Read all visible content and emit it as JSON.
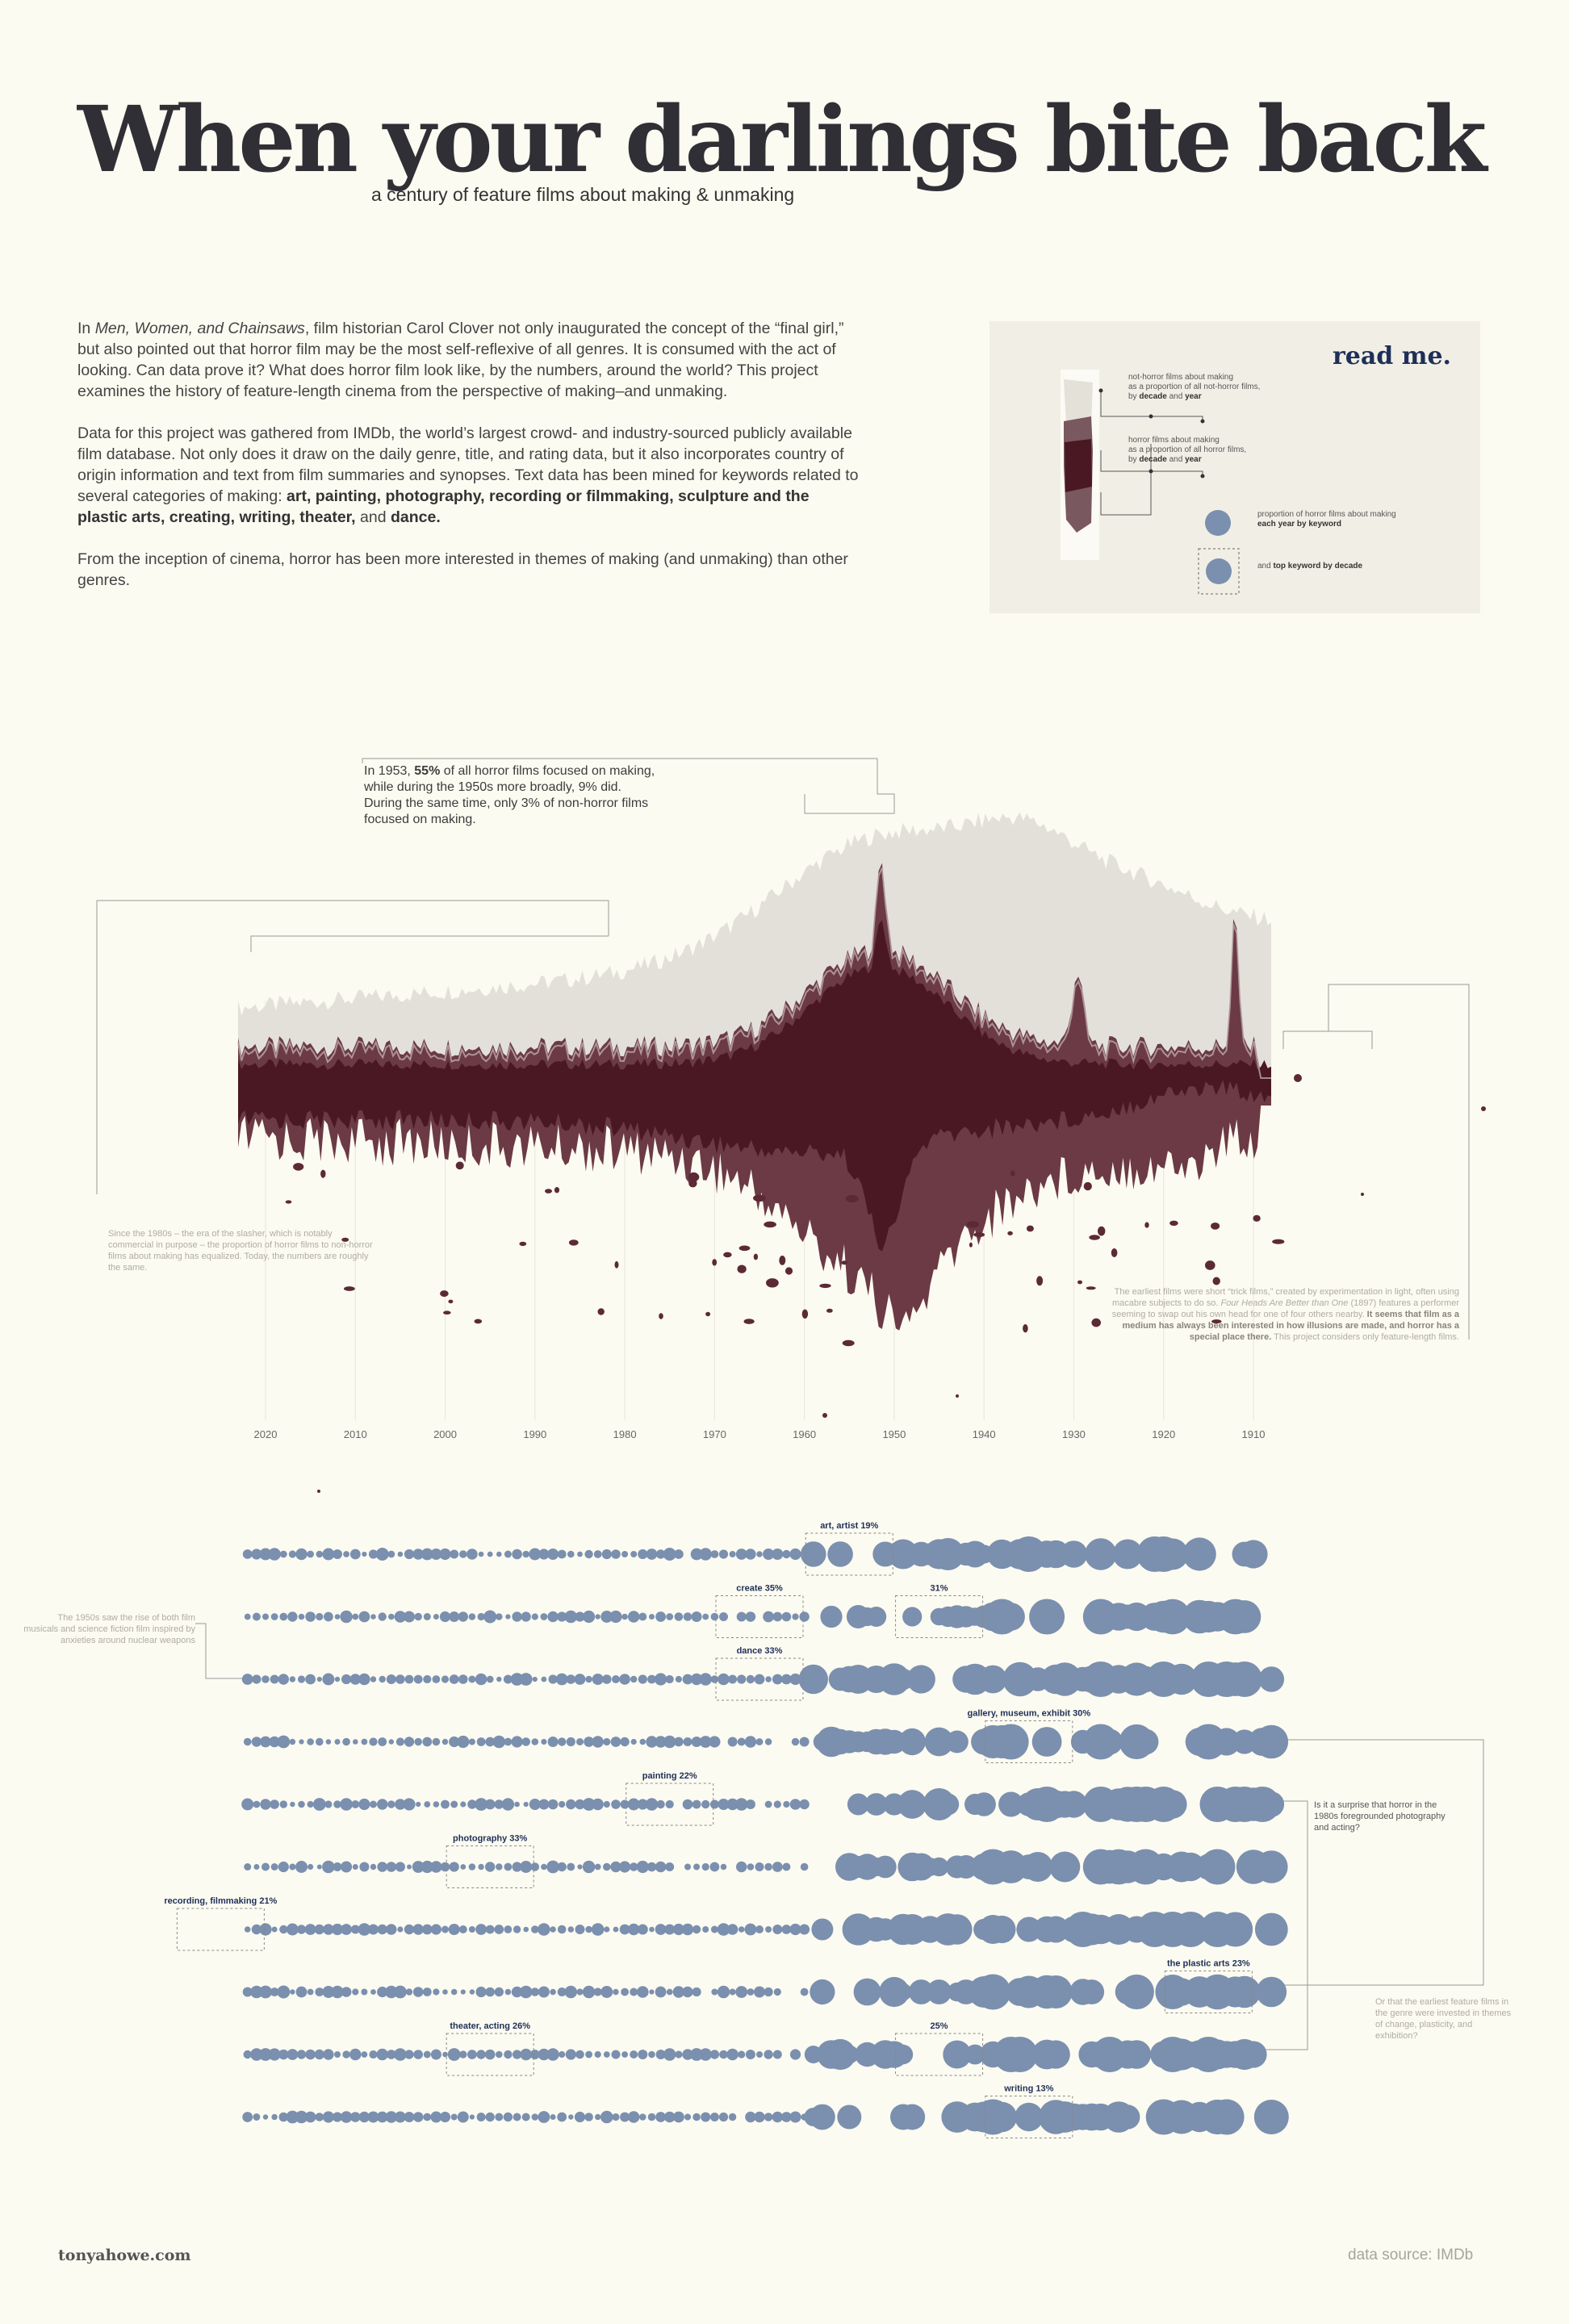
{
  "header": {
    "title": "When your darlings bite back",
    "subtitle": "a century of feature films about making & unmaking"
  },
  "intro": {
    "p1_pre": " In ",
    "p1_book": "Men, Women, and Chainsaws",
    "p1_post": ", film historian Carol Clover not only inaugurated the concept of the “final girl,” but also pointed out that horror film may be the most self-reflexive of all genres. It is consumed with the act of looking. Can data prove it? What does horror film look like, by the numbers, around the world? This project examines the history of feature-length cinema from the perspective of making–and unmaking.",
    "p2_pre": "Data for this project was gathered from IMDb, the world’s largest crowd- and industry-sourced publicly available film database. Not only does it draw on the daily genre, title, and rating data, but it also incorporates country of origin information and text from film summaries and synopses. Text data has been mined for keywords related to several categories of making: ",
    "p2_keywords": "art, painting, photography, recording or filmmaking, sculpture and the plastic arts, creating, writing, theater,",
    "p2_and": " and ",
    "p2_dance": "dance.",
    "p3": "From the inception of cinema, horror has been more interested in themes of making (and unmaking) than other genres."
  },
  "readme": {
    "title": "read me.",
    "l1_a": "not-horror films about making",
    "l1_b": "as a proportion of all not-horror films,",
    "l1_c1": "by ",
    "l1_c2": "decade",
    "l1_c3": " and ",
    "l1_c4": "year",
    "l2_a": "horror films about making",
    "l2_b": "as a proportion of all horror films,",
    "l2_c1": "by ",
    "l2_c2": "decade",
    "l2_c3": " and ",
    "l2_c4": "year",
    "l3_a": "proportion of horror films about making",
    "l3_b": "each year by keyword",
    "l4_a": "and ",
    "l4_b": "top keyword by decade"
  },
  "callout_main": {
    "l1_a": "In 1953, ",
    "l1_b": "55%",
    "l1_c": " of all horror films focused on making,",
    "l2": "while during the 1950s more broadly, 9% did.",
    "l3": "During the same time, only 3% of non-horror films",
    "l4": "focused on making."
  },
  "notes": {
    "n1980s": "Since the 1980s – the era of the slasher, which is notably commercial in purpose – the proportion of horror films to non-horror films about making has equalized. Today, the numbers are roughly the same.",
    "early_1": "The earliest films were short “trick films,” created by experimentation in light, often using macabre subjects to do so. ",
    "early_title": "Four Heads Are Better than One",
    "early_2": " (1897) features a performer seeming to swap out his own head for one of four others nearby. ",
    "early_3": "It seems that film as a medium has always been interested in how illusions are made, and horror has a special place there.",
    "early_4": " This project considers only feature-length films.",
    "n1950s": "The 1950s saw the rise of both film musicals and science fiction film inspired by anxieties around nuclear weapons",
    "n1980photo": "Is it a surprise that horror in the 1980s foregrounded photography and acting?",
    "nplastic": "Or that the earliest feature films in the genre were invested in themes of change, plasticity, and exhibition?"
  },
  "footer": {
    "credit": "tonyahowe.com",
    "source": "data source: IMDb"
  },
  "colors": {
    "bg": "#fcfbf1",
    "horror_dark": "#4a1822",
    "horror_mid": "#6b3a44",
    "nonhorror": "#e3e0d9",
    "dots": "#7b8fae",
    "navy": "#1f2f57"
  },
  "chart_data": [
    {
      "type": "area",
      "x_axis": "year, reversed",
      "xlim": [
        2023,
        1905
      ],
      "x_ticks": [
        "2020",
        "2010",
        "2000",
        "1990",
        "1980",
        "1970",
        "1960",
        "1950",
        "1940",
        "1930",
        "1920",
        "1910"
      ],
      "series": [
        {
          "name": "not-horror films about making",
          "x": [
            2020,
            2010,
            2000,
            1990,
            1980,
            1970,
            1960,
            1953,
            1950,
            1940,
            1930,
            1920,
            1912
          ],
          "values": [
            0.02,
            0.022,
            0.024,
            0.026,
            0.027,
            0.028,
            0.03,
            0.03,
            0.03,
            0.028,
            0.026,
            0.024,
            0.022
          ]
        },
        {
          "name": "horror films about making",
          "x": [
            2020,
            2010,
            2000,
            1990,
            1980,
            1970,
            1960,
            1953,
            1950,
            1940,
            1930,
            1920,
            1912
          ],
          "values": [
            0.02,
            0.022,
            0.024,
            0.03,
            0.035,
            0.05,
            0.07,
            0.55,
            0.09,
            0.08,
            0.1,
            0.08,
            0.2
          ]
        }
      ]
    },
    {
      "type": "scatter",
      "x_axis": "year, reversed",
      "xlim": [
        2023,
        1905
      ],
      "rows": [
        {
          "keyword": "art",
          "label": "art, artist 19%",
          "top_decade": 1950,
          "top_pct": 19
        },
        {
          "keyword": "create",
          "label": "create 35%",
          "top_decade": 1960,
          "top_pct": 35,
          "label2": "31%",
          "top2_decade": 1940,
          "top2_pct": 31
        },
        {
          "keyword": "dance",
          "label": "dance 33%",
          "top_decade": 1960,
          "top_pct": 33
        },
        {
          "keyword": "gallery",
          "label": "gallery, museum, exhibit 30%",
          "top_decade": 1930,
          "top_pct": 30
        },
        {
          "keyword": "painting",
          "label": "painting 22%",
          "top_decade": 1970,
          "top_pct": 22
        },
        {
          "keyword": "photography",
          "label": "photography 33%",
          "top_decade": 1990,
          "top_pct": 33
        },
        {
          "keyword": "recording",
          "label": "recording, filmmaking 21%",
          "top_decade": 2020,
          "top_pct": 21
        },
        {
          "keyword": "plastic",
          "label": "the plastic arts 23%",
          "top_decade": 1910,
          "top_pct": 23
        },
        {
          "keyword": "theater",
          "label": "theater, acting 26%",
          "top_decade": 1990,
          "top_pct": 26,
          "label2": "25%",
          "top2_decade": 1940,
          "top2_pct": 25
        },
        {
          "keyword": "writing",
          "label": "writing 13%",
          "top_decade": 1930,
          "top_pct": 13
        }
      ]
    }
  ]
}
